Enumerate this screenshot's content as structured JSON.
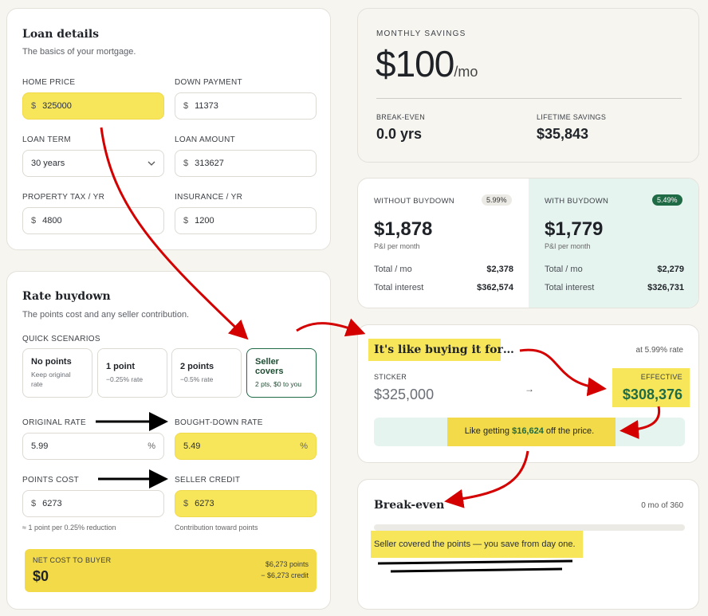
{
  "loan": {
    "title": "Loan details",
    "subtitle": "The basics of your mortgage.",
    "home_price_label": "HOME PRICE",
    "home_price": "325000",
    "down_payment_label": "DOWN PAYMENT",
    "down_payment": "11373",
    "loan_term_label": "LOAN TERM",
    "loan_term": "30 years",
    "loan_amount_label": "LOAN AMOUNT",
    "loan_amount": "313627",
    "property_tax_label": "PROPERTY TAX / YR",
    "property_tax": "4800",
    "insurance_label": "INSURANCE / YR",
    "insurance": "1200",
    "currency": "$"
  },
  "buydown": {
    "title": "Rate buydown",
    "subtitle": "The points cost and any seller contribution.",
    "quick_label": "QUICK SCENARIOS",
    "scenarios": [
      {
        "title": "No points",
        "desc": "Keep original rate"
      },
      {
        "title": "1 point",
        "desc": "−0.25% rate"
      },
      {
        "title": "2 points",
        "desc": "−0.5% rate"
      },
      {
        "title": "Seller covers",
        "desc": "2 pts, $0 to you"
      }
    ],
    "original_rate_label": "ORIGINAL RATE",
    "original_rate": "5.99",
    "bought_down_label": "BOUGHT-DOWN RATE",
    "bought_down_rate": "5.49",
    "percent": "%",
    "points_cost_label": "POINTS COST",
    "points_cost": "6273",
    "points_hint": "≈ 1 point per 0.25% reduction",
    "seller_credit_label": "SELLER CREDIT",
    "seller_credit": "6273",
    "seller_hint": "Contribution toward points",
    "net_label": "NET COST TO BUYER",
    "net_value": "$0",
    "net_points": "$6,273 points",
    "net_credit": "− $6,273 credit"
  },
  "savings": {
    "label": "MONTHLY SAVINGS",
    "value": "$100",
    "unit": "/mo",
    "breakeven_label": "BREAK-EVEN",
    "breakeven_value": "0.0 yrs",
    "lifetime_label": "LIFETIME SAVINGS",
    "lifetime_value": "$35,843"
  },
  "compare": {
    "without": {
      "label": "WITHOUT BUYDOWN",
      "rate": "5.99%",
      "payment": "$1,878",
      "payment_sub": "P&I per month",
      "total_label": "Total / mo",
      "total": "$2,378",
      "interest_label": "Total interest",
      "interest": "$362,574"
    },
    "with": {
      "label": "WITH BUYDOWN",
      "rate": "5.49%",
      "payment": "$1,779",
      "payment_sub": "P&I per month",
      "total_label": "Total / mo",
      "total": "$2,279",
      "interest_label": "Total interest",
      "interest": "$326,731"
    }
  },
  "like": {
    "title": "It's like buying it for…",
    "rate_note": "at 5.99% rate",
    "sticker_label": "STICKER",
    "sticker": "$325,000",
    "arrow": "→",
    "effective_label": "EFFECTIVE",
    "effective": "$308,376",
    "msg_pre": "Like getting ",
    "msg_amount": "$16,624",
    "msg_post": " off the price."
  },
  "breakeven": {
    "title": "Break-even",
    "progress_text": "0 mo of 360",
    "progress_fraction": 0,
    "message": "Seller covered the points — you save from day one."
  },
  "colors": {
    "highlight": "#f7e65a",
    "accent_green": "#1f6b45",
    "mint": "#e6f4ef",
    "annotation_red": "#d40000"
  }
}
